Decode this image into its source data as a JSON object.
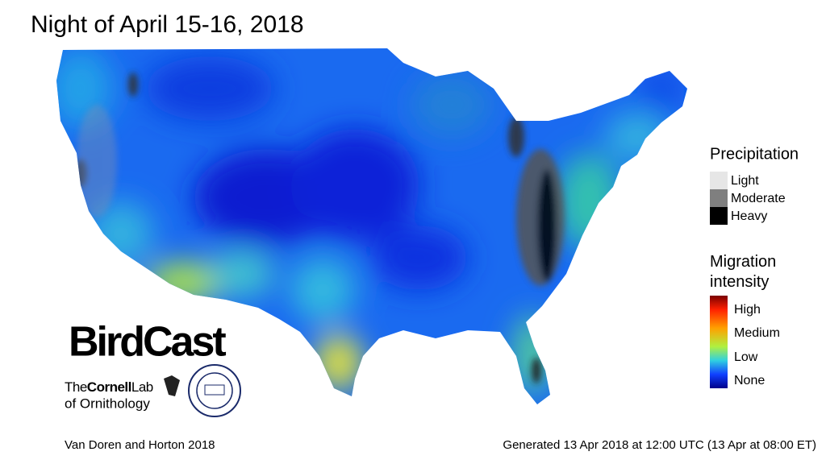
{
  "header": {
    "title": "Night of April 15-16, 2018"
  },
  "legend": {
    "precipitation": {
      "title": "Precipitation",
      "items": [
        "Light",
        "Moderate",
        "Heavy"
      ]
    },
    "migration": {
      "title": "Migration intensity",
      "items": [
        "High",
        "Medium",
        "Low",
        "None"
      ]
    }
  },
  "logos": {
    "birdcast": "BirdCast",
    "cornell": [
      "The",
      "Cornell",
      "Lab",
      "of Ornithology"
    ]
  },
  "footer": {
    "credit": "Van Doren and Horton 2018",
    "generated": "Generated 13 Apr 2018 at 12:00 UTC (13 Apr at 08:00 ET)"
  }
}
